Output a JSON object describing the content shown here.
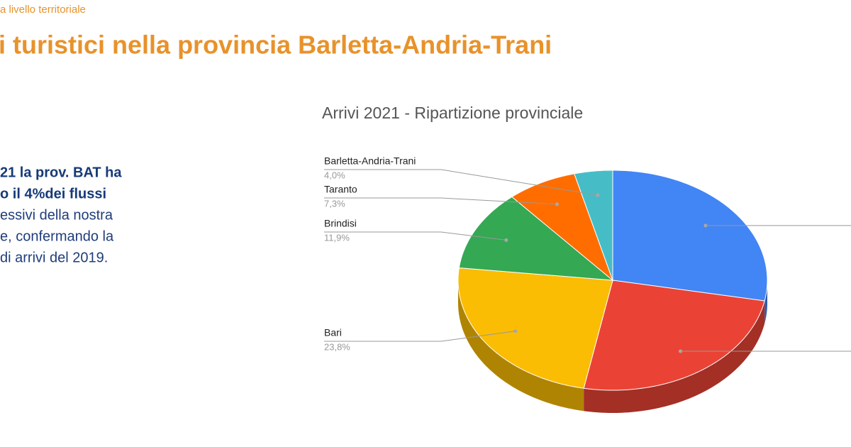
{
  "header": {
    "section": "a livello territoriale",
    "title": "i turistici nella provincia Barletta-Andria-Trani"
  },
  "body": {
    "lines": [
      "21 la prov. BAT ha",
      "o il 4%dei flussi",
      "essivi della nostra",
      "e, confermando la",
      "di arrivi del 2019."
    ]
  },
  "chart_data": {
    "type": "pie",
    "title": "Arrivi 2021 - Ripartizione provinciale",
    "three_d": true,
    "categories": [
      null,
      null,
      "Bari",
      "Brindisi",
      "Taranto",
      "Barletta-Andria-Trani"
    ],
    "values": [
      28,
      25,
      23.8,
      11.9,
      7.3,
      4.0
    ],
    "value_labels": [
      null,
      null,
      "23,8%",
      "11,9%",
      "7,3%",
      "4,0%"
    ],
    "colors": [
      "#4285f4",
      "#ea4335",
      "#fbbc04",
      "#34a853",
      "#ff6d01",
      "#46bdc6"
    ]
  }
}
